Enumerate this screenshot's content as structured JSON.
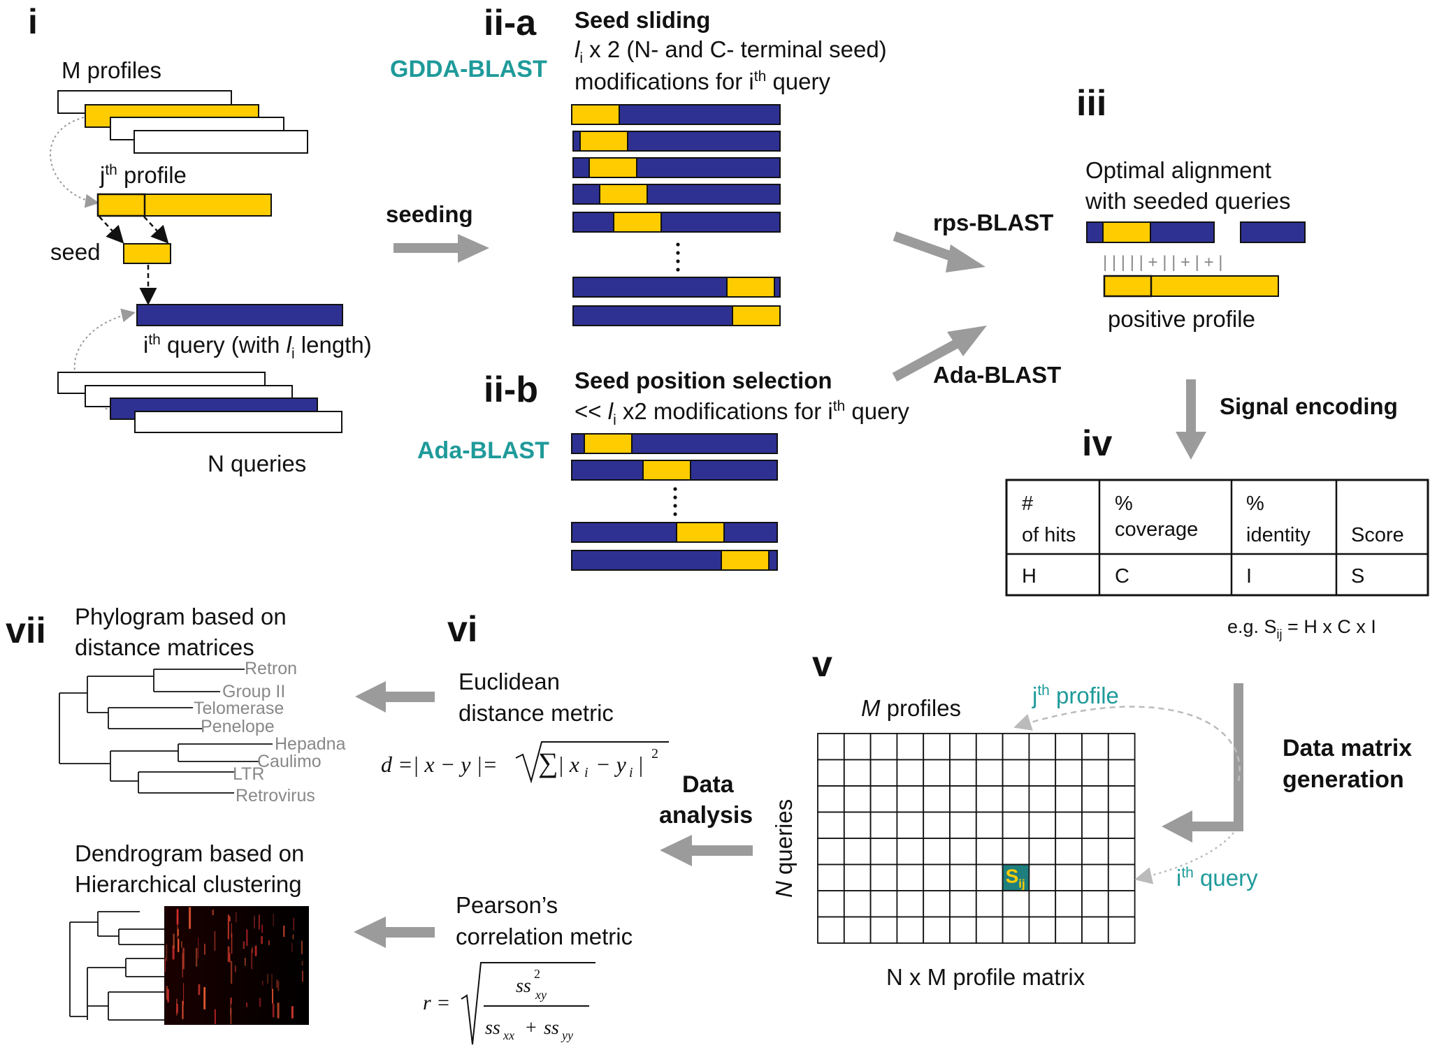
{
  "colors": {
    "query_blue": "#2e3192",
    "seed_yellow": "#ffcc00",
    "arrow_grey": "#9b9b9b",
    "label_teal": "#1f9a9a",
    "cell_teal": "#1f7f7f",
    "tree_grey": "#888888"
  },
  "panel_i": {
    "label": "i",
    "m_profiles": "M profiles",
    "jth_profile": {
      "j": "j",
      "sup": "th",
      "rest": " profile"
    },
    "seed": "seed",
    "ith_query": {
      "i": "i",
      "sup": "th",
      "mid": " query (with ",
      "l": "l",
      "sub": "i",
      "rest": " length)"
    },
    "n_queries": "N queries"
  },
  "arrow_seeding": "seeding",
  "panel_iia": {
    "label": "ii-a",
    "tool": "GDDA-BLAST",
    "title": "Seed sliding",
    "line1": {
      "l": "l",
      "sub": "i",
      "rest": " x 2 (N- and C- terminal seed)"
    },
    "line2": {
      "pre": "modifications for i",
      "sup": "th",
      "rest": " query"
    }
  },
  "panel_iib": {
    "label": "ii-b",
    "tool": "Ada-BLAST",
    "title": "Seed position selection",
    "line1": {
      "pre": "<< ",
      "l": "l",
      "sub": "i",
      "mid": " x2 modifications for i",
      "sup": "th",
      "rest": " query"
    }
  },
  "arrow_rps": "rps-BLAST",
  "arrow_ada": "Ada-BLAST",
  "panel_iii": {
    "label": "iii",
    "title1": "Optimal alignment",
    "title2": "with seeded queries",
    "match_line": "| | | | | +  | | +    | + |",
    "positive_profile": "positive profile"
  },
  "signal_encoding": "Signal encoding",
  "panel_iv": {
    "label": "iv",
    "table_headers": [
      {
        "l1": "#",
        "l2": "of hits"
      },
      {
        "l1": "%",
        "l2": "coverage"
      },
      {
        "l1": "%",
        "l2": "identity"
      },
      {
        "l1": "",
        "l2": "Score"
      }
    ],
    "table_values": [
      "H",
      "C",
      "I",
      "S"
    ],
    "example": {
      "pre": "e.g. S",
      "sub": "ij",
      "rest": " = H x C x I"
    }
  },
  "data_matrix_generation": {
    "l1": "Data matrix",
    "l2": "generation"
  },
  "panel_v": {
    "label": "v",
    "m_profiles": {
      "m": "M",
      "rest": " profiles"
    },
    "jth_profile": {
      "j": "j",
      "sup": "th",
      "rest": " profile"
    },
    "n_queries": {
      "n": "N",
      "rest": " queries"
    },
    "ith_query": {
      "i": "i",
      "sup": "th",
      "rest": " query"
    },
    "cell": {
      "s": "S",
      "sub": "ij"
    },
    "caption": "N x M profile matrix",
    "matrix_rows": 8,
    "matrix_cols": 12,
    "highlight_cell": {
      "row": 5,
      "col": 7
    }
  },
  "data_analysis": {
    "l1": "Data",
    "l2": "analysis"
  },
  "panel_vi": {
    "label": "vi",
    "euclid1": "Euclidean",
    "euclid2": "distance metric",
    "pearson1": "Pearson’s",
    "pearson2": "correlation metric"
  },
  "panel_vii": {
    "label": "vii",
    "phylo1": "Phylogram based on",
    "phylo2": "distance matrices",
    "taxa": [
      "Retron",
      "Group II",
      "Telomerase",
      "Penelope",
      "Hepadna",
      "Caulimo",
      "LTR",
      "Retrovirus"
    ],
    "dendro1": "Dendrogram based on",
    "dendro2": "Hierarchical clustering"
  }
}
